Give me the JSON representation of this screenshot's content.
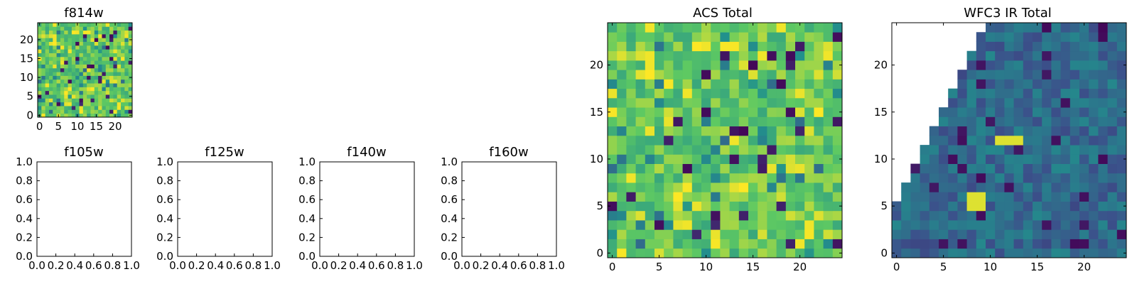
{
  "colormap": {
    "name": "viridis",
    "stops": [
      "#440154",
      "#3b528b",
      "#21918c",
      "#5ec962",
      "#fde725"
    ]
  },
  "chart_data": [
    {
      "id": "f814w",
      "type": "heatmap",
      "title": "f814w",
      "xlabel": "",
      "ylabel": "",
      "xlim": [
        0,
        24
      ],
      "ylim": [
        0,
        24
      ],
      "xticks": [
        0,
        5,
        10,
        15,
        20
      ],
      "yticks": [
        0,
        5,
        10,
        15,
        20
      ],
      "grid": false,
      "description": "25x25 image, values shown in viridis (same data as ACS Total)",
      "image_source": "acs_total"
    },
    {
      "id": "f105w",
      "type": "empty",
      "title": "f105w",
      "xlim": [
        0.0,
        1.0
      ],
      "ylim": [
        0.0,
        1.0
      ],
      "xticks": [
        "0.0",
        "0.2",
        "0.4",
        "0.6",
        "0.8",
        "1.0"
      ],
      "yticks": [
        "0.0",
        "0.2",
        "0.4",
        "0.6",
        "0.8",
        "1.0"
      ]
    },
    {
      "id": "f125w",
      "type": "empty",
      "title": "f125w",
      "xlim": [
        0.0,
        1.0
      ],
      "ylim": [
        0.0,
        1.0
      ],
      "xticks": [
        "0.0",
        "0.2",
        "0.4",
        "0.6",
        "0.8",
        "1.0"
      ],
      "yticks": [
        "0.0",
        "0.2",
        "0.4",
        "0.6",
        "0.8",
        "1.0"
      ]
    },
    {
      "id": "f140w",
      "type": "empty",
      "title": "f140w",
      "xlim": [
        0.0,
        1.0
      ],
      "ylim": [
        0.0,
        1.0
      ],
      "xticks": [
        "0.0",
        "0.2",
        "0.4",
        "0.6",
        "0.8",
        "1.0"
      ],
      "yticks": [
        "0.0",
        "0.2",
        "0.4",
        "0.6",
        "0.8",
        "1.0"
      ]
    },
    {
      "id": "f160w",
      "type": "empty",
      "title": "f160w",
      "xlim": [
        0.0,
        1.0
      ],
      "ylim": [
        0.0,
        1.0
      ],
      "xticks": [
        "0.0",
        "0.2",
        "0.4",
        "0.6",
        "0.8",
        "1.0"
      ],
      "yticks": [
        "0.0",
        "0.2",
        "0.4",
        "0.6",
        "0.8",
        "1.0"
      ]
    },
    {
      "id": "acs_total",
      "type": "heatmap",
      "title": "ACS Total",
      "xlabel": "",
      "ylabel": "",
      "xlim": [
        0,
        24
      ],
      "ylim": [
        0,
        24
      ],
      "xticks": [
        0,
        5,
        10,
        15,
        20
      ],
      "yticks": [
        0,
        5,
        10,
        15,
        20
      ],
      "grid": false,
      "description": "25x25 grid, mostly green/yellow-green (values ~0.6-0.85) with scattered yellow highs and dark purple lows",
      "grid_values": [],
      "_note": "grid_values rows listed bottom (y=0) to top (y=24); generated below if empty"
    },
    {
      "id": "wfc3_ir_total",
      "type": "heatmap",
      "title": "WFC3 IR Total",
      "xlabel": "",
      "ylabel": "",
      "xlim": [
        0,
        24
      ],
      "ylim": [
        0,
        24
      ],
      "xticks": [
        0,
        5,
        10,
        15,
        20
      ],
      "yticks": [
        0,
        5,
        10,
        15,
        20
      ],
      "grid": false,
      "description": "25x25 grid, mostly blue/teal (values ~0.25-0.45); upper-left triangle is empty (white); bright yellow blobs near (12,12) and (9,6)",
      "masked_region": "upper-left triangle above the diagonal from (0,5) to (10,24)",
      "bright_spots": [
        {
          "x": [
            11,
            13
          ],
          "y": [
            12,
            12
          ],
          "value": 0.95
        },
        {
          "x": [
            8,
            9
          ],
          "y": [
            5,
            6
          ],
          "value": 0.95
        }
      ]
    }
  ]
}
